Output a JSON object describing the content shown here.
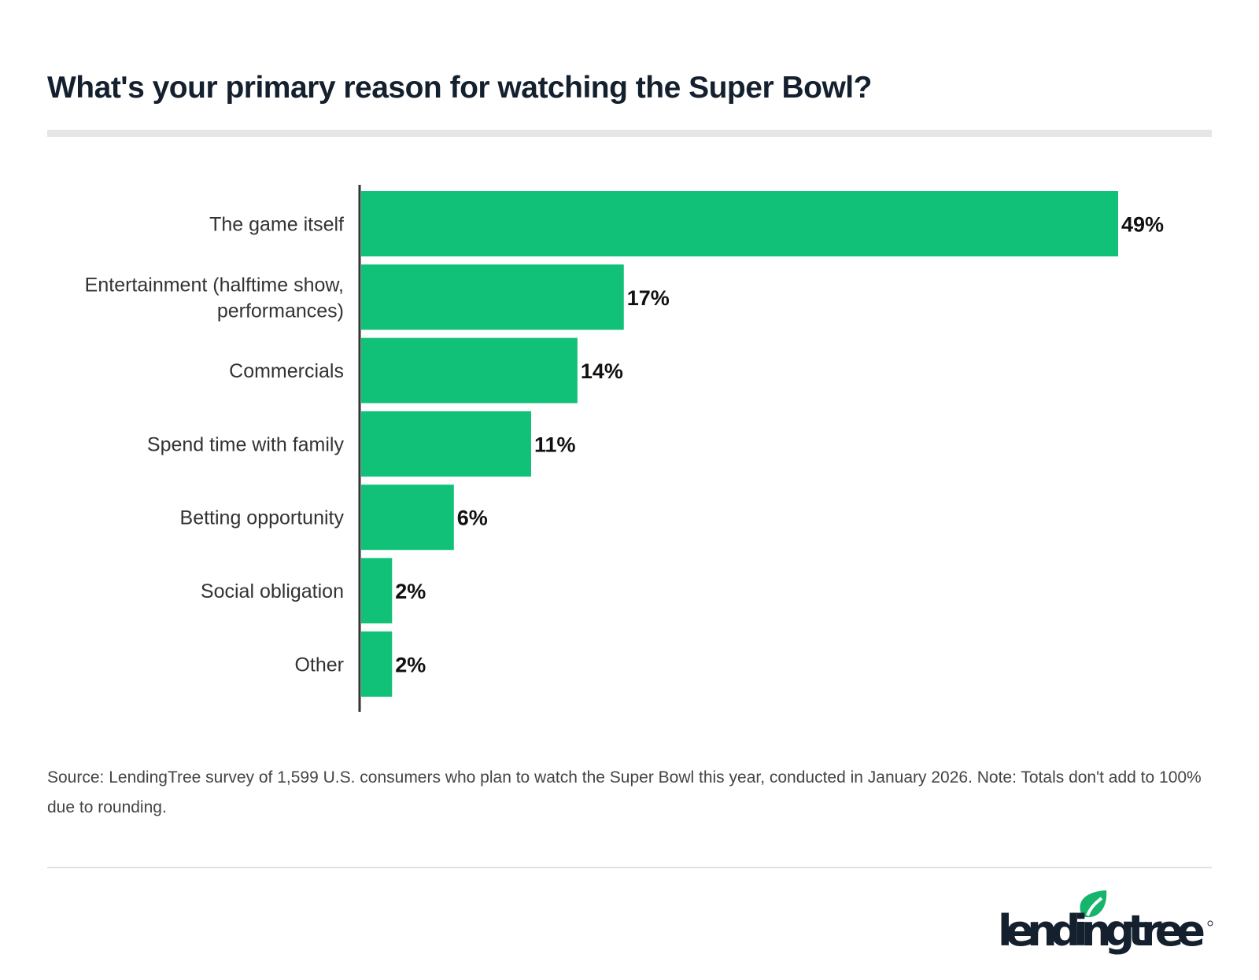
{
  "header": {
    "title": "What's your primary reason for watching the Super Bowl?"
  },
  "chart_data": {
    "type": "bar",
    "orientation": "horizontal",
    "title": "What's your primary reason for watching the Super Bowl?",
    "categories": [
      [
        "The game itself"
      ],
      [
        "Entertainment (halftime show,",
        "performances)"
      ],
      [
        "Commercials"
      ],
      [
        "Spend time with family"
      ],
      [
        "Betting opportunity"
      ],
      [
        "Social obligation"
      ],
      [
        "Other"
      ]
    ],
    "values": [
      49,
      17,
      14,
      11,
      6,
      2,
      2
    ],
    "value_labels": [
      "49%",
      "17%",
      "14%",
      "11%",
      "6%",
      "2%",
      "2%"
    ],
    "unit": "%",
    "xlim": [
      0,
      49
    ],
    "grid": false,
    "bar_color": "#10c177"
  },
  "footer": {
    "source": "Source: LendingTree survey of 1,599 U.S. consumers who plan to watch the Super Bowl this year, conducted in January 2026. Note: Totals don't add to 100% due to rounding.",
    "logo_text": "lendingtree"
  },
  "colors": {
    "title": "#14202e",
    "bar": "#10c177",
    "logo_leaf": "#16b46c",
    "logo_text": "#14202e"
  }
}
